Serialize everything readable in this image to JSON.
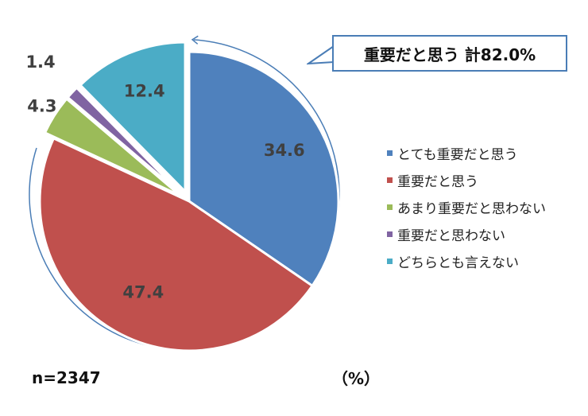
{
  "chart_data": {
    "type": "pie",
    "categories": [
      "とても重要だと思う",
      "重要だと思う",
      "あまり重要だと思わない",
      "重要だと思わない",
      "どちらとも言えない"
    ],
    "values": [
      34.6,
      47.4,
      4.3,
      1.4,
      12.4
    ],
    "value_labels": [
      "34.6",
      "47.4",
      "4.3",
      "1.4",
      "12.4"
    ],
    "colors": [
      "#4f81bd",
      "#c0504d",
      "#9bbb59",
      "#8064a2",
      "#4bacc6"
    ],
    "legend_placement": "right",
    "unit": "（%）",
    "sample_size": "n=2347",
    "callout": "重要だと思う  計82.0%"
  }
}
